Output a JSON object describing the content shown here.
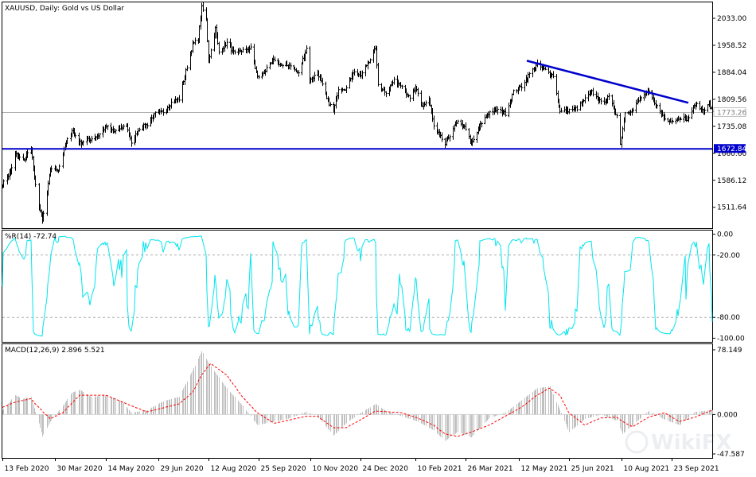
{
  "chart_data": [
    {
      "type": "candlestick",
      "title": "XAUUSD, Daily:  Gold vs US Dollar",
      "y_ticks": [
        2033.0,
        1958.52,
        1884.04,
        1809.56,
        1735.08,
        1660.6,
        1586.12,
        1511.64
      ],
      "ylim": [
        1454.0,
        2077.0
      ],
      "current_price": "1773.26",
      "horizontal_line": {
        "label": "1672.84",
        "value": 1672.84,
        "color": "#0000cc"
      },
      "trendline": {
        "from": {
          "x": "2021-05-19",
          "y": 1916
        },
        "to": {
          "x": "2021-10-08",
          "y": 1800
        },
        "color": "#0000cc"
      },
      "approx_close_path": [
        [
          "2020-02-13",
          1575
        ],
        [
          "2020-02-20",
          1610
        ],
        [
          "2020-02-24",
          1660
        ],
        [
          "2020-03-02",
          1640
        ],
        [
          "2020-03-09",
          1675
        ],
        [
          "2020-03-12",
          1590
        ],
        [
          "2020-03-16",
          1515
        ],
        [
          "2020-03-19",
          1475
        ],
        [
          "2020-03-23",
          1550
        ],
        [
          "2020-03-26",
          1620
        ],
        [
          "2020-04-02",
          1615
        ],
        [
          "2020-04-09",
          1690
        ],
        [
          "2020-04-14",
          1725
        ],
        [
          "2020-04-21",
          1690
        ],
        [
          "2020-04-30",
          1700
        ],
        [
          "2020-05-07",
          1710
        ],
        [
          "2020-05-14",
          1735
        ],
        [
          "2020-05-21",
          1720
        ],
        [
          "2020-06-01",
          1740
        ],
        [
          "2020-06-05",
          1685
        ],
        [
          "2020-06-12",
          1730
        ],
        [
          "2020-06-19",
          1740
        ],
        [
          "2020-06-26",
          1770
        ],
        [
          "2020-07-03",
          1775
        ],
        [
          "2020-07-10",
          1800
        ],
        [
          "2020-07-17",
          1810
        ],
        [
          "2020-07-24",
          1900
        ],
        [
          "2020-07-29",
          1960
        ],
        [
          "2020-08-03",
          1980
        ],
        [
          "2020-08-06",
          2063
        ],
        [
          "2020-08-10",
          2030
        ],
        [
          "2020-08-12",
          1915
        ],
        [
          "2020-08-18",
          2005
        ],
        [
          "2020-08-21",
          1940
        ],
        [
          "2020-08-28",
          1965
        ],
        [
          "2020-09-04",
          1935
        ],
        [
          "2020-09-11",
          1945
        ],
        [
          "2020-09-18",
          1950
        ],
        [
          "2020-09-24",
          1870
        ],
        [
          "2020-09-30",
          1885
        ],
        [
          "2020-10-09",
          1920
        ],
        [
          "2020-10-16",
          1900
        ],
        [
          "2020-10-23",
          1905
        ],
        [
          "2020-10-30",
          1880
        ],
        [
          "2020-11-06",
          1950
        ],
        [
          "2020-11-09",
          1860
        ],
        [
          "2020-11-16",
          1885
        ],
        [
          "2020-11-24",
          1810
        ],
        [
          "2020-11-30",
          1775
        ],
        [
          "2020-12-04",
          1840
        ],
        [
          "2020-12-11",
          1840
        ],
        [
          "2020-12-17",
          1885
        ],
        [
          "2020-12-24",
          1875
        ],
        [
          "2021-01-06",
          1950
        ],
        [
          "2021-01-08",
          1850
        ],
        [
          "2021-01-15",
          1830
        ],
        [
          "2021-01-22",
          1860
        ],
        [
          "2021-01-29",
          1850
        ],
        [
          "2021-02-05",
          1810
        ],
        [
          "2021-02-10",
          1840
        ],
        [
          "2021-02-16",
          1790
        ],
        [
          "2021-02-22",
          1810
        ],
        [
          "2021-02-26",
          1735
        ],
        [
          "2021-03-05",
          1700
        ],
        [
          "2021-03-08",
          1685
        ],
        [
          "2021-03-15",
          1730
        ],
        [
          "2021-03-19",
          1745
        ],
        [
          "2021-03-26",
          1730
        ],
        [
          "2021-03-31",
          1685
        ],
        [
          "2021-04-09",
          1745
        ],
        [
          "2021-04-16",
          1775
        ],
        [
          "2021-04-23",
          1780
        ],
        [
          "2021-04-30",
          1770
        ],
        [
          "2021-05-07",
          1830
        ],
        [
          "2021-05-14",
          1845
        ],
        [
          "2021-05-21",
          1880
        ],
        [
          "2021-05-28",
          1905
        ],
        [
          "2021-06-04",
          1890
        ],
        [
          "2021-06-11",
          1875
        ],
        [
          "2021-06-17",
          1775
        ],
        [
          "2021-06-25",
          1780
        ],
        [
          "2021-07-02",
          1785
        ],
        [
          "2021-07-09",
          1810
        ],
        [
          "2021-07-15",
          1830
        ],
        [
          "2021-07-23",
          1800
        ],
        [
          "2021-07-30",
          1815
        ],
        [
          "2021-08-06",
          1765
        ],
        [
          "2021-08-09",
          1685
        ],
        [
          "2021-08-13",
          1775
        ],
        [
          "2021-08-20",
          1780
        ],
        [
          "2021-08-27",
          1815
        ],
        [
          "2021-09-03",
          1830
        ],
        [
          "2021-09-10",
          1790
        ],
        [
          "2021-09-17",
          1755
        ],
        [
          "2021-09-24",
          1750
        ],
        [
          "2021-09-30",
          1760
        ],
        [
          "2021-10-07",
          1755
        ],
        [
          "2021-10-14",
          1795
        ],
        [
          "2021-10-21",
          1780
        ],
        [
          "2021-10-26",
          1795
        ],
        [
          "2021-10-29",
          1773
        ]
      ]
    },
    {
      "type": "line",
      "title": "%R(14) -72.74",
      "y_ticks": [
        "0.00",
        "-20.00",
        "-80.00",
        "-100.00"
      ],
      "tick_values": [
        0,
        -20,
        -80,
        -100
      ],
      "ylim": [
        -102,
        2
      ],
      "dashed_levels": [
        -20,
        -80
      ],
      "color": "#00e5ee"
    },
    {
      "type": "histogram+line",
      "title": "MACD(12,26,9) 2.896 5.521",
      "y_ticks": [
        "78.149",
        "0.000",
        "-47.587"
      ],
      "ylim": [
        -47.587,
        78.149
      ],
      "histogram_color": "#c0c0c0",
      "signal_color": "#ff0000",
      "macd_path": [
        [
          "2020-02-13",
          5
        ],
        [
          "2020-02-24",
          22
        ],
        [
          "2020-03-02",
          18
        ],
        [
          "2020-03-09",
          20
        ],
        [
          "2020-03-16",
          -10
        ],
        [
          "2020-03-19",
          -25
        ],
        [
          "2020-03-26",
          -8
        ],
        [
          "2020-04-06",
          10
        ],
        [
          "2020-04-14",
          25
        ],
        [
          "2020-04-21",
          28
        ],
        [
          "2020-05-01",
          20
        ],
        [
          "2020-05-14",
          22
        ],
        [
          "2020-05-28",
          15
        ],
        [
          "2020-06-05",
          2
        ],
        [
          "2020-06-19",
          5
        ],
        [
          "2020-07-03",
          15
        ],
        [
          "2020-07-17",
          20
        ],
        [
          "2020-07-29",
          50
        ],
        [
          "2020-08-06",
          72
        ],
        [
          "2020-08-14",
          55
        ],
        [
          "2020-08-28",
          30
        ],
        [
          "2020-09-11",
          10
        ],
        [
          "2020-09-24",
          -12
        ],
        [
          "2020-10-09",
          -8
        ],
        [
          "2020-10-23",
          -4
        ],
        [
          "2020-11-06",
          3
        ],
        [
          "2020-11-16",
          -2
        ],
        [
          "2020-11-30",
          -24
        ],
        [
          "2020-12-11",
          -10
        ],
        [
          "2020-12-24",
          2
        ],
        [
          "2021-01-06",
          12
        ],
        [
          "2021-01-15",
          4
        ],
        [
          "2021-01-29",
          -2
        ],
        [
          "2021-02-12",
          -8
        ],
        [
          "2021-02-26",
          -18
        ],
        [
          "2021-03-08",
          -30
        ],
        [
          "2021-03-19",
          -20
        ],
        [
          "2021-03-31",
          -26
        ],
        [
          "2021-04-16",
          -4
        ],
        [
          "2021-04-30",
          2
        ],
        [
          "2021-05-14",
          16
        ],
        [
          "2021-05-28",
          30
        ],
        [
          "2021-06-08",
          32
        ],
        [
          "2021-06-17",
          5
        ],
        [
          "2021-06-25",
          -20
        ],
        [
          "2021-07-09",
          -5
        ],
        [
          "2021-07-23",
          0
        ],
        [
          "2021-08-06",
          -7
        ],
        [
          "2021-08-11",
          -22
        ],
        [
          "2021-08-20",
          -12
        ],
        [
          "2021-09-03",
          4
        ],
        [
          "2021-09-17",
          -6
        ],
        [
          "2021-09-30",
          -12
        ],
        [
          "2021-10-14",
          3
        ],
        [
          "2021-10-29",
          5
        ]
      ],
      "signal_path": [
        [
          "2020-02-13",
          8
        ],
        [
          "2020-02-24",
          14
        ],
        [
          "2020-03-09",
          18
        ],
        [
          "2020-03-16",
          8
        ],
        [
          "2020-03-26",
          -5
        ],
        [
          "2020-04-06",
          2
        ],
        [
          "2020-04-21",
          22
        ],
        [
          "2020-05-14",
          22
        ],
        [
          "2020-06-05",
          10
        ],
        [
          "2020-06-19",
          3
        ],
        [
          "2020-07-17",
          12
        ],
        [
          "2020-07-29",
          25
        ],
        [
          "2020-08-06",
          45
        ],
        [
          "2020-08-14",
          58
        ],
        [
          "2020-08-28",
          45
        ],
        [
          "2020-09-11",
          20
        ],
        [
          "2020-09-24",
          2
        ],
        [
          "2020-10-09",
          -10
        ],
        [
          "2020-10-23",
          -6
        ],
        [
          "2020-11-06",
          -2
        ],
        [
          "2020-11-16",
          -2
        ],
        [
          "2020-11-30",
          -15
        ],
        [
          "2020-12-11",
          -15
        ],
        [
          "2020-12-24",
          -6
        ],
        [
          "2021-01-06",
          4
        ],
        [
          "2021-01-29",
          2
        ],
        [
          "2021-02-12",
          -4
        ],
        [
          "2021-02-26",
          -12
        ],
        [
          "2021-03-08",
          -22
        ],
        [
          "2021-03-19",
          -25
        ],
        [
          "2021-03-31",
          -20
        ],
        [
          "2021-04-16",
          -12
        ],
        [
          "2021-04-30",
          -2
        ],
        [
          "2021-05-14",
          8
        ],
        [
          "2021-05-28",
          22
        ],
        [
          "2021-06-08",
          30
        ],
        [
          "2021-06-17",
          22
        ],
        [
          "2021-06-25",
          2
        ],
        [
          "2021-07-09",
          -12
        ],
        [
          "2021-07-23",
          -4
        ],
        [
          "2021-08-06",
          -3
        ],
        [
          "2021-08-11",
          -8
        ],
        [
          "2021-08-20",
          -14
        ],
        [
          "2021-09-03",
          -3
        ],
        [
          "2021-09-17",
          2
        ],
        [
          "2021-09-30",
          -8
        ],
        [
          "2021-10-14",
          -3
        ],
        [
          "2021-10-29",
          5
        ]
      ]
    }
  ],
  "x_axis": {
    "start": "2020-02-13",
    "end": "2021-10-29",
    "labels": [
      {
        "text": "13 Feb 2020",
        "date": "2020-02-13"
      },
      {
        "text": "30 Mar 2020",
        "date": "2020-03-30"
      },
      {
        "text": "14 May 2020",
        "date": "2020-05-14"
      },
      {
        "text": "29 Jun 2020",
        "date": "2020-06-29"
      },
      {
        "text": "12 Aug 2020",
        "date": "2020-08-12"
      },
      {
        "text": "25 Sep 2020",
        "date": "2020-09-25"
      },
      {
        "text": "10 Nov 2020",
        "date": "2020-11-10"
      },
      {
        "text": "24 Dec 2020",
        "date": "2020-12-24"
      },
      {
        "text": "10 Feb 2021",
        "date": "2021-02-10"
      },
      {
        "text": "26 Mar 2021",
        "date": "2021-03-26"
      },
      {
        "text": "12 May 2021",
        "date": "2021-05-12"
      },
      {
        "text": "25 Jun 2021",
        "date": "2021-06-25"
      },
      {
        "text": "10 Aug 2021",
        "date": "2021-08-10"
      },
      {
        "text": "23 Sep 2021",
        "date": "2021-09-23"
      }
    ]
  },
  "watermark": "WikiFX"
}
